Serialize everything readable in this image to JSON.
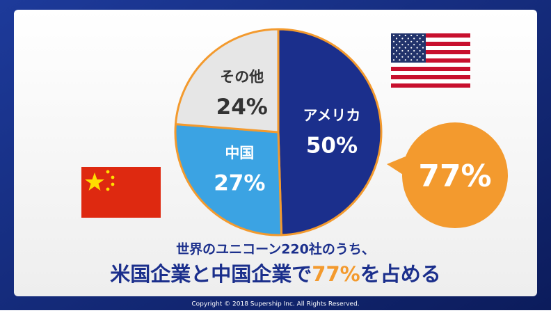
{
  "chart_data": {
    "type": "pie",
    "categories": [
      "アメリカ",
      "中国",
      "その他"
    ],
    "values": [
      50,
      27,
      24
    ],
    "value_labels": [
      "50%",
      "27%",
      "24%"
    ],
    "colors": [
      "#1b2f8c",
      "#3ba3e3",
      "#e6e6e6"
    ],
    "label_colors": [
      "#ffffff",
      "#ffffff",
      "#333333"
    ],
    "outline_color": "#f39a2e",
    "callout": "77%",
    "subtitle": "世界のユニコーン220社のうち、",
    "title_parts": [
      "米国企業と中国企業で",
      "77%",
      "を占める"
    ],
    "footer": "Copyright © 2018  Supership Inc. All Rights Reserved."
  }
}
